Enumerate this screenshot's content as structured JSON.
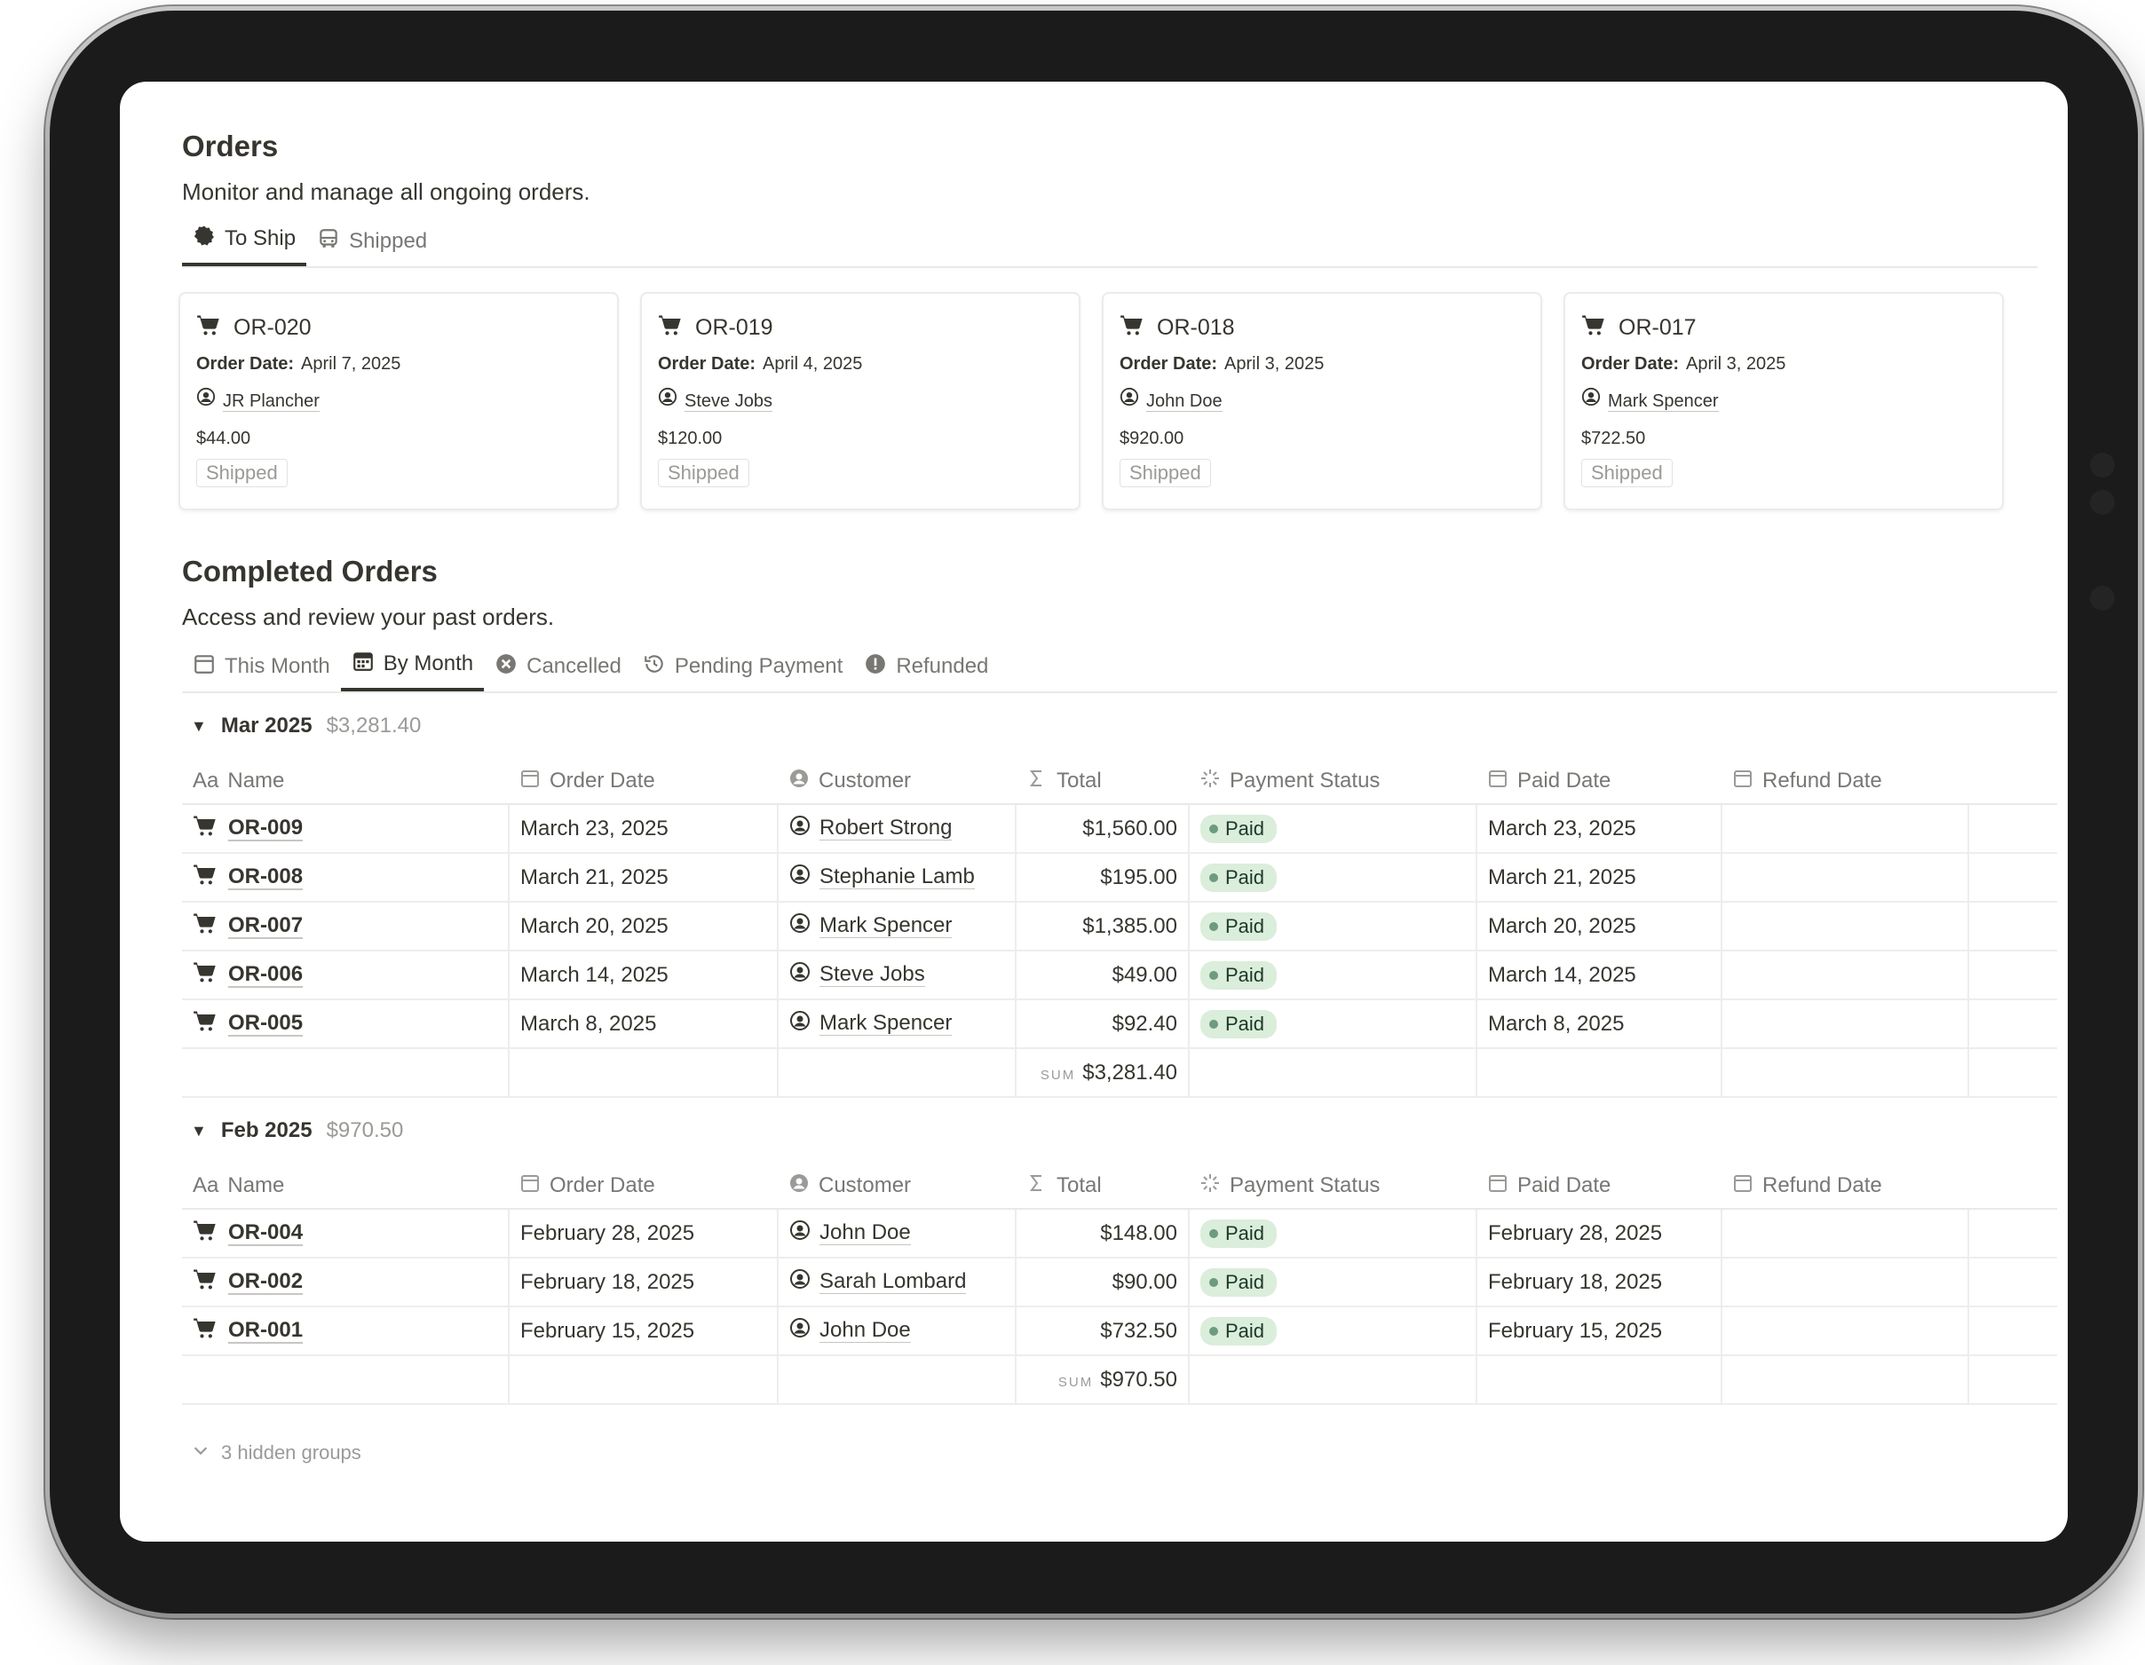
{
  "orders": {
    "title": "Orders",
    "description": "Monitor and manage all ongoing orders.",
    "tabs": [
      {
        "label": "To Ship",
        "icon": "badge-icon",
        "active": true
      },
      {
        "label": "Shipped",
        "icon": "bus-icon",
        "active": false
      }
    ],
    "cards": [
      {
        "id": "OR-020",
        "date_label": "Order Date:",
        "date": "April 7, 2025",
        "customer": "JR Plancher",
        "total": "$44.00",
        "status": "Shipped"
      },
      {
        "id": "OR-019",
        "date_label": "Order Date:",
        "date": "April 4, 2025",
        "customer": "Steve Jobs",
        "total": "$120.00",
        "status": "Shipped"
      },
      {
        "id": "OR-018",
        "date_label": "Order Date:",
        "date": "April 3, 2025",
        "customer": "John Doe",
        "total": "$920.00",
        "status": "Shipped"
      },
      {
        "id": "OR-017",
        "date_label": "Order Date:",
        "date": "April 3, 2025",
        "customer": "Mark Spencer",
        "total": "$722.50",
        "status": "Shipped"
      }
    ]
  },
  "completed": {
    "title": "Completed Orders",
    "description": "Access and review your past orders.",
    "tabs": [
      {
        "label": "This Month",
        "icon": "calendar-icon",
        "active": false
      },
      {
        "label": "By Month",
        "icon": "calendar-grid-icon",
        "active": true
      },
      {
        "label": "Cancelled",
        "icon": "x-circle-icon",
        "active": false
      },
      {
        "label": "Pending Payment",
        "icon": "history-icon",
        "active": false
      },
      {
        "label": "Refunded",
        "icon": "alert-circle-icon",
        "active": false
      }
    ],
    "columns": {
      "name": "Name",
      "name_prefix": "Aa",
      "order_date": "Order Date",
      "customer": "Customer",
      "total": "Total",
      "payment_status": "Payment Status",
      "paid_date": "Paid Date",
      "refund_date": "Refund Date"
    },
    "sum_label": "SUM",
    "groups": [
      {
        "name": "Mar 2025",
        "sum": "$3,281.40",
        "footer_sum": "$3,281.40",
        "rows": [
          {
            "name": "OR-009",
            "order_date": "March 23, 2025",
            "customer": "Robert Strong",
            "total": "$1,560.00",
            "status": "Paid",
            "paid_date": "March 23, 2025",
            "refund_date": ""
          },
          {
            "name": "OR-008",
            "order_date": "March 21, 2025",
            "customer": "Stephanie Lamb",
            "total": "$195.00",
            "status": "Paid",
            "paid_date": "March 21, 2025",
            "refund_date": ""
          },
          {
            "name": "OR-007",
            "order_date": "March 20, 2025",
            "customer": "Mark Spencer",
            "total": "$1,385.00",
            "status": "Paid",
            "paid_date": "March 20, 2025",
            "refund_date": ""
          },
          {
            "name": "OR-006",
            "order_date": "March 14, 2025",
            "customer": "Steve Jobs",
            "total": "$49.00",
            "status": "Paid",
            "paid_date": "March 14, 2025",
            "refund_date": ""
          },
          {
            "name": "OR-005",
            "order_date": "March 8, 2025",
            "customer": "Mark Spencer",
            "total": "$92.40",
            "status": "Paid",
            "paid_date": "March 8, 2025",
            "refund_date": ""
          }
        ]
      },
      {
        "name": "Feb 2025",
        "sum": "$970.50",
        "footer_sum": "$970.50",
        "rows": [
          {
            "name": "OR-004",
            "order_date": "February 28, 2025",
            "customer": "John Doe",
            "total": "$148.00",
            "status": "Paid",
            "paid_date": "February 28, 2025",
            "refund_date": ""
          },
          {
            "name": "OR-002",
            "order_date": "February 18, 2025",
            "customer": "Sarah Lombard",
            "total": "$90.00",
            "status": "Paid",
            "paid_date": "February 18, 2025",
            "refund_date": ""
          },
          {
            "name": "OR-001",
            "order_date": "February 15, 2025",
            "customer": "John Doe",
            "total": "$732.50",
            "status": "Paid",
            "paid_date": "February 15, 2025",
            "refund_date": ""
          }
        ]
      }
    ],
    "hidden_groups": "3 hidden groups"
  },
  "colors": {
    "paid_bg": "#dbeddb",
    "paid_dot": "#6c9b7d",
    "text": "#37352f",
    "muted": "#9b9a97"
  }
}
